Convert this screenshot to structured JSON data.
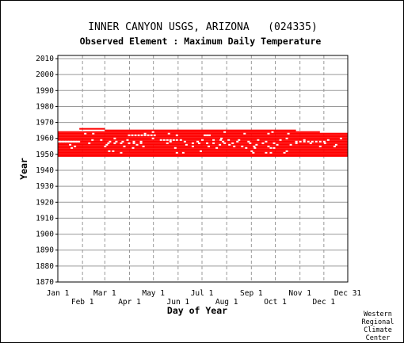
{
  "chart_data": {
    "type": "scatter",
    "title": "INNER CANYON USGS, ARIZONA   (024335)",
    "subtitle": "Observed Element : Maximum Daily Temperature",
    "xlabel": "Day of Year",
    "ylabel": "Year",
    "xlim": [
      1,
      365
    ],
    "ylim": [
      1870,
      2012
    ],
    "grid": true,
    "yticks": [
      2010,
      2000,
      1990,
      1980,
      1970,
      1960,
      1950,
      1940,
      1930,
      1920,
      1910,
      1900,
      1890,
      1880,
      1870
    ],
    "xticks_upper": [
      {
        "day": 1,
        "label": "Jan 1"
      },
      {
        "day": 60,
        "label": "Mar 1"
      },
      {
        "day": 121,
        "label": "May 1"
      },
      {
        "day": 182,
        "label": "Jul 1"
      },
      {
        "day": 244,
        "label": "Sep 1"
      },
      {
        "day": 305,
        "label": "Nov 1"
      },
      {
        "day": 365,
        "label": "Dec 31"
      }
    ],
    "xticks_lower": [
      {
        "day": 32,
        "label": "Feb 1"
      },
      {
        "day": 91,
        "label": "Apr 1"
      },
      {
        "day": 152,
        "label": "Jun 1"
      },
      {
        "day": 213,
        "label": "Aug 1"
      },
      {
        "day": 274,
        "label": "Oct 1"
      },
      {
        "day": 335,
        "label": "Dec 1"
      }
    ],
    "observed_color": "#ff0000",
    "observed_ranges": [
      {
        "year": 1949,
        "start": 1,
        "end": 365
      },
      {
        "year": 1950,
        "start": 1,
        "end": 365
      },
      {
        "year": 1951,
        "start": 1,
        "end": 365
      },
      {
        "year": 1952,
        "start": 1,
        "end": 365
      },
      {
        "year": 1953,
        "start": 1,
        "end": 365
      },
      {
        "year": 1954,
        "start": 1,
        "end": 365
      },
      {
        "year": 1955,
        "start": 1,
        "end": 365
      },
      {
        "year": 1956,
        "start": 1,
        "end": 365
      },
      {
        "year": 1957,
        "start": 1,
        "end": 365
      },
      {
        "year": 1958,
        "start": 1,
        "end": 365
      },
      {
        "year": 1959,
        "start": 1,
        "end": 365
      },
      {
        "year": 1960,
        "start": 1,
        "end": 365
      },
      {
        "year": 1961,
        "start": 1,
        "end": 365
      },
      {
        "year": 1962,
        "start": 1,
        "end": 365
      },
      {
        "year": 1963,
        "start": 1,
        "end": 365
      },
      {
        "year": 1964,
        "start": 1,
        "end": 330
      },
      {
        "year": 1965,
        "start": 60,
        "end": 300
      },
      {
        "year": 1966,
        "start": 28,
        "end": 60
      }
    ],
    "missing_days": [
      {
        "year": 1951,
        "days": [
          80,
          150,
          158,
          246,
          262,
          268,
          285
        ]
      },
      {
        "year": 1952,
        "days": [
          65,
          70,
          180,
          244,
          288
        ]
      },
      {
        "year": 1954,
        "days": [
          18,
          95,
          148,
          200,
          237,
          248,
          268,
          272
        ]
      },
      {
        "year": 1955,
        "days": [
          22,
          60,
          84,
          108,
          170,
          190,
          222,
          232,
          247,
          265,
          330,
          348
        ]
      },
      {
        "year": 1956,
        "days": [
          16,
          62,
          100,
          162,
          204,
          216,
          250,
          276,
          293,
          350
        ]
      },
      {
        "year": 1957,
        "days": [
          40,
          64,
          72,
          80,
          90,
          96,
          105,
          138,
          170,
          178,
          188,
          196,
          210,
          220,
          242,
          258,
          272,
          300,
          318,
          336
        ]
      },
      {
        "year": 1958,
        "days": [
          1,
          3,
          5,
          7,
          9,
          11,
          13,
          15,
          17,
          19,
          21,
          23,
          25,
          27,
          66,
          74,
          82,
          96,
          105,
          142,
          160,
          176,
          208,
          226,
          240,
          262,
          300,
          305,
          310,
          315,
          320,
          325,
          330,
          335
        ]
      },
      {
        "year": 1959,
        "days": [
          44,
          55,
          88,
          130,
          134,
          138,
          142,
          146,
          150,
          155,
          182,
          196,
          205,
          215,
          228,
          252,
          280,
          310,
          340
        ]
      },
      {
        "year": 1960,
        "days": [
          72,
          120,
          206,
          288,
          356
        ]
      },
      {
        "year": 1962,
        "days": [
          90,
          94,
          98,
          102,
          106,
          110,
          114,
          118,
          122,
          150,
          185,
          188,
          191
        ]
      },
      {
        "year": 1963,
        "days": [
          35,
          45,
          110,
          140,
          235,
          265,
          290
        ]
      },
      {
        "year": 1964,
        "days": [
          120,
          210,
          270
        ]
      }
    ],
    "credit": [
      "Western",
      "Regional",
      "Climate",
      "Center"
    ]
  }
}
